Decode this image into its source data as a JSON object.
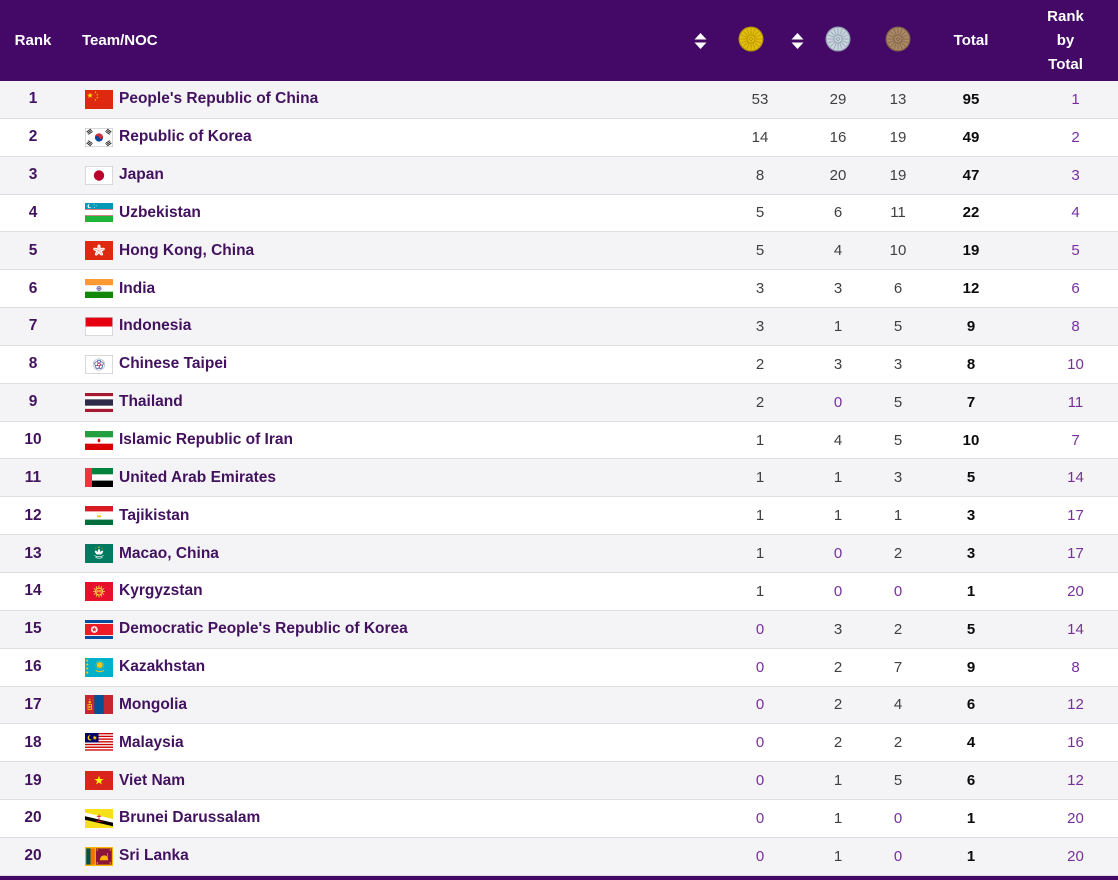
{
  "header": {
    "rank": "Rank",
    "team": "Team/NOC",
    "total": "Total",
    "rank_by_total": "Rank by Total"
  },
  "icons": {
    "sort": "sort-icon",
    "gold": "gold-medal-icon",
    "silver": "silver-medal-icon",
    "bronze": "bronze-medal-icon"
  },
  "colors": {
    "header_bg": "#440967",
    "row_stripe": "#F4F3F6",
    "row_border": "#DEDDE1",
    "team_text": "#42125E",
    "count_text": "#3F3F3F",
    "zero_text": "#76309B",
    "rank_by_total_text": "#76309B",
    "total_text": "#0B0B0B",
    "gold_medal": "#E3BF0B",
    "silver_medal": "#C9D4DE",
    "bronze_medal": "#AD8A67"
  },
  "rows": [
    {
      "rank": "1",
      "team": "People's Republic of China",
      "flag": "chn",
      "gold": "53",
      "silver": "29",
      "bronze": "13",
      "total": "95",
      "rank_by_total": "1"
    },
    {
      "rank": "2",
      "team": "Republic of Korea",
      "flag": "kor",
      "gold": "14",
      "silver": "16",
      "bronze": "19",
      "total": "49",
      "rank_by_total": "2"
    },
    {
      "rank": "3",
      "team": "Japan",
      "flag": "jpn",
      "gold": "8",
      "silver": "20",
      "bronze": "19",
      "total": "47",
      "rank_by_total": "3"
    },
    {
      "rank": "4",
      "team": "Uzbekistan",
      "flag": "uzb",
      "gold": "5",
      "silver": "6",
      "bronze": "11",
      "total": "22",
      "rank_by_total": "4"
    },
    {
      "rank": "5",
      "team": "Hong Kong, China",
      "flag": "hkg",
      "gold": "5",
      "silver": "4",
      "bronze": "10",
      "total": "19",
      "rank_by_total": "5"
    },
    {
      "rank": "6",
      "team": "India",
      "flag": "ind",
      "gold": "3",
      "silver": "3",
      "bronze": "6",
      "total": "12",
      "rank_by_total": "6"
    },
    {
      "rank": "7",
      "team": "Indonesia",
      "flag": "idn",
      "gold": "3",
      "silver": "1",
      "bronze": "5",
      "total": "9",
      "rank_by_total": "8"
    },
    {
      "rank": "8",
      "team": "Chinese Taipei",
      "flag": "tpe",
      "gold": "2",
      "silver": "3",
      "bronze": "3",
      "total": "8",
      "rank_by_total": "10"
    },
    {
      "rank": "9",
      "team": "Thailand",
      "flag": "tha",
      "gold": "2",
      "silver": "0",
      "bronze": "5",
      "total": "7",
      "rank_by_total": "11"
    },
    {
      "rank": "10",
      "team": "Islamic Republic of Iran",
      "flag": "irn",
      "gold": "1",
      "silver": "4",
      "bronze": "5",
      "total": "10",
      "rank_by_total": "7"
    },
    {
      "rank": "11",
      "team": "United Arab Emirates",
      "flag": "are",
      "gold": "1",
      "silver": "1",
      "bronze": "3",
      "total": "5",
      "rank_by_total": "14"
    },
    {
      "rank": "12",
      "team": "Tajikistan",
      "flag": "tjk",
      "gold": "1",
      "silver": "1",
      "bronze": "1",
      "total": "3",
      "rank_by_total": "17"
    },
    {
      "rank": "13",
      "team": "Macao, China",
      "flag": "mac",
      "gold": "1",
      "silver": "0",
      "bronze": "2",
      "total": "3",
      "rank_by_total": "17"
    },
    {
      "rank": "14",
      "team": "Kyrgyzstan",
      "flag": "kgz",
      "gold": "1",
      "silver": "0",
      "bronze": "0",
      "total": "1",
      "rank_by_total": "20"
    },
    {
      "rank": "15",
      "team": "Democratic People's Republic of Korea",
      "flag": "prk",
      "gold": "0",
      "silver": "3",
      "bronze": "2",
      "total": "5",
      "rank_by_total": "14"
    },
    {
      "rank": "16",
      "team": "Kazakhstan",
      "flag": "kaz",
      "gold": "0",
      "silver": "2",
      "bronze": "7",
      "total": "9",
      "rank_by_total": "8"
    },
    {
      "rank": "17",
      "team": "Mongolia",
      "flag": "mng",
      "gold": "0",
      "silver": "2",
      "bronze": "4",
      "total": "6",
      "rank_by_total": "12"
    },
    {
      "rank": "18",
      "team": "Malaysia",
      "flag": "mys",
      "gold": "0",
      "silver": "2",
      "bronze": "2",
      "total": "4",
      "rank_by_total": "16"
    },
    {
      "rank": "19",
      "team": "Viet Nam",
      "flag": "vnm",
      "gold": "0",
      "silver": "1",
      "bronze": "5",
      "total": "6",
      "rank_by_total": "12"
    },
    {
      "rank": "20",
      "team": "Brunei Darussalam",
      "flag": "brn",
      "gold": "0",
      "silver": "1",
      "bronze": "0",
      "total": "1",
      "rank_by_total": "20"
    },
    {
      "rank": "20",
      "team": "Sri Lanka",
      "flag": "lka",
      "gold": "0",
      "silver": "1",
      "bronze": "0",
      "total": "1",
      "rank_by_total": "20"
    }
  ]
}
